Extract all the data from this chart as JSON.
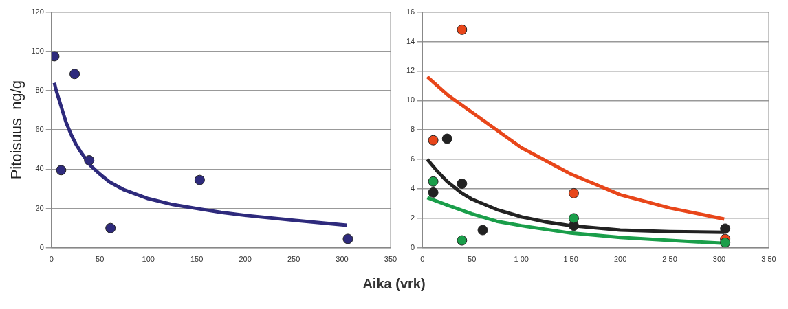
{
  "chart_data": [
    {
      "type": "scatter",
      "xlabel": "Aika (vrk)",
      "ylabel": "Pitoisuus  ng/g",
      "xlim": [
        0,
        350
      ],
      "xticks": [
        0,
        50,
        100,
        150,
        200,
        250,
        300,
        350
      ],
      "ylim": [
        0,
        120
      ],
      "yticks": [
        0,
        20,
        40,
        60,
        80,
        100,
        120
      ],
      "grid": "y",
      "legend": false,
      "marker": "circle",
      "series": [
        {
          "type": "line",
          "marker": "none",
          "color": "#2e2a7c",
          "x": [
            3,
            5,
            10,
            15,
            20,
            25,
            30,
            40,
            50,
            60,
            75,
            100,
            125,
            150,
            175,
            200,
            250,
            305
          ],
          "values": [
            84,
            80,
            72,
            64,
            58,
            53,
            49,
            42,
            37.5,
            33.5,
            29.5,
            25,
            22,
            20,
            18,
            16.5,
            14,
            11.5
          ]
        },
        {
          "color": "#2e2a7c",
          "x": [
            3,
            10,
            24,
            39,
            61,
            153,
            306
          ],
          "values": [
            97.5,
            39.5,
            88.5,
            44.5,
            10,
            34.5,
            4.5
          ]
        }
      ]
    },
    {
      "type": "scatter",
      "xlim": [
        0,
        350
      ],
      "xticks": [
        0,
        50,
        {
          "value": 100,
          "label": "1 00"
        },
        {
          "value": 150,
          "label": "1 50"
        },
        200,
        {
          "value": 250,
          "label": "2 50"
        },
        300,
        {
          "value": 350,
          "label": "3 50"
        }
      ],
      "ylim": [
        0,
        16
      ],
      "yticks": [
        0,
        2,
        4,
        6,
        8,
        10,
        12,
        14,
        16
      ],
      "grid": "y",
      "legend": false,
      "marker": "circle",
      "series": [
        {
          "type": "line",
          "marker": "none",
          "color": "#e8461a",
          "x": [
            5,
            25,
            50,
            75,
            100,
            125,
            150,
            175,
            200,
            250,
            305
          ],
          "values": [
            11.6,
            10.4,
            9.2,
            8.0,
            6.8,
            5.9,
            5.0,
            4.3,
            3.6,
            2.7,
            1.95
          ]
        },
        {
          "type": "line",
          "marker": "none",
          "color": "#222222",
          "x": [
            5,
            15,
            25,
            40,
            50,
            75,
            100,
            125,
            150,
            200,
            250,
            305
          ],
          "values": [
            6,
            5.2,
            4.5,
            3.7,
            3.3,
            2.6,
            2.1,
            1.75,
            1.5,
            1.2,
            1.1,
            1.05
          ]
        },
        {
          "type": "line",
          "marker": "none",
          "color": "#1a9e4a",
          "x": [
            5,
            25,
            50,
            75,
            100,
            150,
            200,
            250,
            305
          ],
          "values": [
            3.4,
            2.9,
            2.3,
            1.8,
            1.5,
            1.0,
            0.7,
            0.5,
            0.3
          ]
        },
        {
          "color": "#e8461a",
          "x": [
            11,
            40,
            153,
            306
          ],
          "values": [
            7.3,
            14.8,
            3.7,
            0.6
          ]
        },
        {
          "color": "#222222",
          "x": [
            11,
            25,
            40,
            61,
            153,
            306
          ],
          "values": [
            3.75,
            7.4,
            4.35,
            1.2,
            1.5,
            1.3
          ]
        },
        {
          "color": "#1a9e4a",
          "x": [
            11,
            40,
            153,
            306
          ],
          "values": [
            4.5,
            0.5,
            2.0,
            0.35
          ]
        }
      ]
    }
  ]
}
